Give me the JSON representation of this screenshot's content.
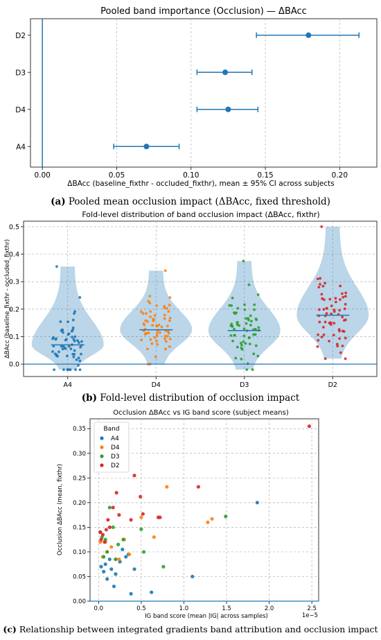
{
  "charts": {
    "a": {
      "title": "Pooled band importance (Occlusion) — ΔBAcc",
      "xlabel": "ΔBAcc (baseline_fixthr - occluded_fixthr), mean ± 95% CI across subjects",
      "ylabel": "",
      "xticks": [
        "0.00",
        "0.05",
        "0.10",
        "0.15",
        "0.20"
      ],
      "caption_label": "(a)",
      "caption_text": " Pooled mean occlusion impact (ΔBAcc, fixed threshold)"
    },
    "b": {
      "title": "Fold-level distribution of band occlusion impact (ΔBAcc, fixthr)",
      "xlabel": "",
      "ylabel": "ΔBAcc (baseline_fixthr - occluded_fixthr)",
      "yticks": [
        "0.0",
        "0.1",
        "0.2",
        "0.3",
        "0.4",
        "0.5"
      ],
      "caption_label": "(b)",
      "caption_text": " Fold-level distribution of occlusion impact"
    },
    "c": {
      "title": "Occlusion ΔBAcc vs IG band score (subject means)",
      "xlabel": "IG band score (mean |IG| across samples)",
      "ylabel": "Occlusion ΔBAcc (mean, fixthr)",
      "xticks": [
        "0.0",
        "0.5",
        "1.0",
        "1.5",
        "2.0",
        "2.5"
      ],
      "yticks": [
        "0.00",
        "0.05",
        "0.10",
        "0.15",
        "0.20",
        "0.25",
        "0.30",
        "0.35"
      ],
      "x_offset_label": "1e−5",
      "legend_title": "Band",
      "caption_label": "(c)",
      "caption_text": " Relationship between integrated gradients band attribution and occlusion impact"
    }
  },
  "chart_data": [
    {
      "type": "scatter",
      "subtype": "errorbar",
      "title": "Pooled band importance (Occlusion) — ΔBAcc",
      "xlabel": "ΔBAcc (baseline_fixthr - occluded_fixthr), mean ± 95% CI across subjects",
      "categories": [
        "D2",
        "D3",
        "D4",
        "A4"
      ],
      "means": [
        0.179,
        0.123,
        0.125,
        0.07
      ],
      "ci_low": [
        0.144,
        0.104,
        0.104,
        0.048
      ],
      "ci_high": [
        0.213,
        0.141,
        0.145,
        0.092
      ],
      "xlim": [
        -0.008,
        0.225
      ],
      "reference_line_x": 0.0,
      "grid": true,
      "color": "#1f77b4"
    },
    {
      "type": "violin",
      "title": "Fold-level distribution of band occlusion impact (ΔBAcc, fixthr)",
      "ylabel": "ΔBAcc (baseline_fixthr - occluded_fixthr)",
      "categories": [
        "A4",
        "D4",
        "D3",
        "D2"
      ],
      "colors": [
        "#1f77b4",
        "#ff7f0e",
        "#2ca02c",
        "#d62728"
      ],
      "medians": [
        0.07,
        0.125,
        0.122,
        0.178
      ],
      "mins": [
        -0.02,
        0.0,
        -0.02,
        0.02
      ],
      "maxs": [
        0.355,
        0.34,
        0.375,
        0.5
      ],
      "ylim": [
        -0.045,
        0.52
      ],
      "reference_line_y": 0.0,
      "grid": true,
      "points_per_band": 64
    },
    {
      "type": "scatter",
      "title": "Occlusion ΔBAcc vs IG band score (subject means)",
      "xlabel": "IG band score (mean |IG| across samples)",
      "ylabel": "Occlusion ΔBAcc (mean, fixthr)",
      "x_scale_factor": "1e-5",
      "xlim": [
        -0.1,
        2.58
      ],
      "ylim": [
        0.0,
        0.37
      ],
      "grid": true,
      "legend_position": "top-left",
      "series": [
        {
          "name": "A4",
          "color": "#1f77b4",
          "points": [
            [
              0.03,
              0.07
            ],
            [
              0.06,
              0.06
            ],
            [
              0.08,
              0.075
            ],
            [
              0.1,
              0.045
            ],
            [
              0.13,
              0.085
            ],
            [
              0.15,
              0.065
            ],
            [
              0.18,
              0.03
            ],
            [
              0.2,
              0.055
            ],
            [
              0.25,
              0.08
            ],
            [
              0.28,
              0.105
            ],
            [
              0.32,
              0.09
            ],
            [
              0.35,
              0.095
            ],
            [
              0.38,
              0.015
            ],
            [
              0.42,
              0.065
            ],
            [
              0.62,
              0.018
            ],
            [
              1.1,
              0.05
            ],
            [
              1.86,
              0.2
            ]
          ]
        },
        {
          "name": "D4",
          "color": "#ff7f0e",
          "points": [
            [
              0.02,
              0.12
            ],
            [
              0.05,
              0.09
            ],
            [
              0.08,
              0.12
            ],
            [
              0.1,
              0.1
            ],
            [
              0.15,
              0.11
            ],
            [
              0.2,
              0.085
            ],
            [
              0.24,
              0.085
            ],
            [
              0.3,
              0.125
            ],
            [
              0.36,
              0.095
            ],
            [
              0.5,
              0.17
            ],
            [
              0.65,
              0.13
            ],
            [
              0.8,
              0.232
            ],
            [
              1.28,
              0.16
            ],
            [
              1.33,
              0.167
            ]
          ]
        },
        {
          "name": "D3",
          "color": "#2ca02c",
          "points": [
            [
              0.02,
              0.14
            ],
            [
              0.04,
              0.13
            ],
            [
              0.06,
              0.09
            ],
            [
              0.08,
              0.125
            ],
            [
              0.1,
              0.1
            ],
            [
              0.13,
              0.19
            ],
            [
              0.17,
              0.15
            ],
            [
              0.2,
              0.085
            ],
            [
              0.23,
              0.115
            ],
            [
              0.29,
              0.125
            ],
            [
              0.5,
              0.146
            ],
            [
              0.53,
              0.1
            ],
            [
              0.76,
              0.07
            ],
            [
              1.49,
              0.172
            ]
          ]
        },
        {
          "name": "D2",
          "color": "#d62728",
          "points": [
            [
              0.02,
              0.14
            ],
            [
              0.03,
              0.125
            ],
            [
              0.05,
              0.135
            ],
            [
              0.07,
              0.12
            ],
            [
              0.09,
              0.145
            ],
            [
              0.11,
              0.165
            ],
            [
              0.13,
              0.15
            ],
            [
              0.17,
              0.19
            ],
            [
              0.21,
              0.22
            ],
            [
              0.24,
              0.175
            ],
            [
              0.38,
              0.165
            ],
            [
              0.42,
              0.255
            ],
            [
              0.49,
              0.212
            ],
            [
              0.52,
              0.177
            ],
            [
              0.7,
              0.17
            ],
            [
              0.72,
              0.17
            ],
            [
              1.17,
              0.232
            ],
            [
              2.47,
              0.355
            ]
          ]
        }
      ]
    }
  ]
}
